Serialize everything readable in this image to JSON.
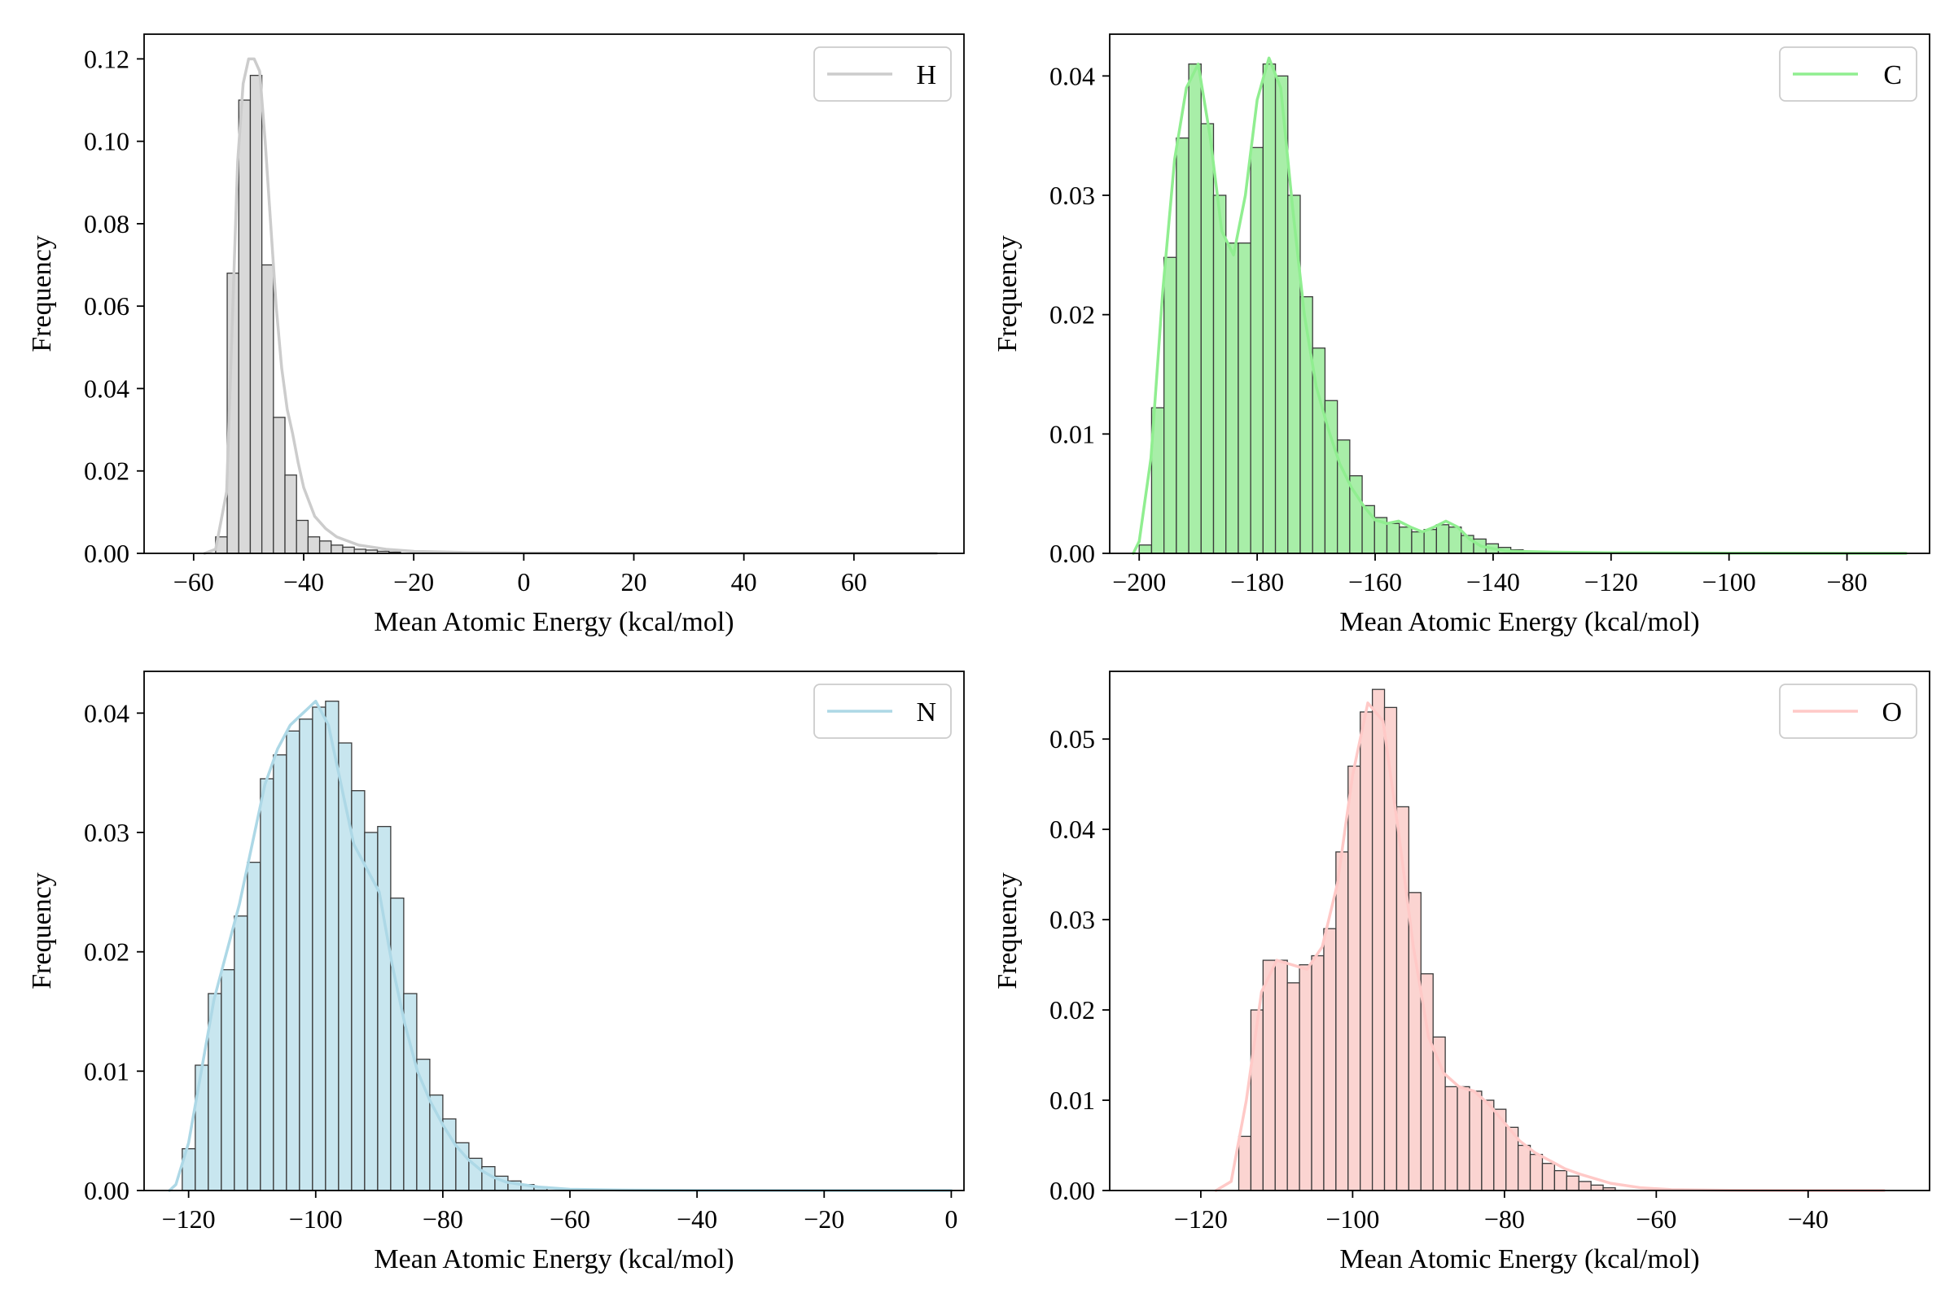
{
  "chart_data": [
    {
      "type": "histogram",
      "legend": {
        "label": "H",
        "position": "top-right"
      },
      "xlabel": "Mean Atomic Energy (kcal/mol)",
      "ylabel": "Frequency",
      "xlim": [
        -69,
        80
      ],
      "ylim": [
        0,
        0.126
      ],
      "xticks": [
        -60,
        -40,
        -20,
        0,
        20,
        40,
        60
      ],
      "yticks": [
        0.0,
        0.02,
        0.04,
        0.06,
        0.08,
        0.1,
        0.12
      ],
      "ytick_decimals": 2,
      "color": "#d9d9d9",
      "line_color": "#cccccc",
      "bin_start": -56,
      "bin_width": 2.1,
      "values": [
        0.004,
        0.068,
        0.11,
        0.116,
        0.07,
        0.033,
        0.019,
        0.008,
        0.004,
        0.003,
        0.002,
        0.0015,
        0.001,
        0.0008,
        0.0005,
        0.0003
      ],
      "kde": {
        "x": [
          -58,
          -56,
          -54,
          -53,
          -52,
          -51,
          -50,
          -49,
          -48,
          -47,
          -46,
          -45,
          -44,
          -43,
          -42,
          -41,
          -40,
          -38,
          -36,
          -34,
          -30,
          -25,
          -20,
          -10,
          0,
          10,
          20,
          30,
          40,
          50,
          60,
          70,
          75
        ],
        "y": [
          0,
          0.001,
          0.015,
          0.055,
          0.095,
          0.114,
          0.12,
          0.12,
          0.117,
          0.1,
          0.08,
          0.06,
          0.045,
          0.035,
          0.029,
          0.022,
          0.016,
          0.009,
          0.006,
          0.004,
          0.002,
          0.001,
          0.0005,
          0.0002,
          0.0001,
          5e-05,
          0,
          0,
          0,
          0,
          0,
          0,
          0
        ]
      }
    },
    {
      "type": "histogram",
      "legend": {
        "label": "C",
        "position": "top-right"
      },
      "xlabel": "Mean Atomic Energy (kcal/mol)",
      "ylabel": "Frequency",
      "xlim": [
        -205,
        -66
      ],
      "ylim": [
        0,
        0.0435
      ],
      "xticks": [
        -200,
        -180,
        -160,
        -140,
        -120,
        -100,
        -80
      ],
      "yticks": [
        0.0,
        0.01,
        0.02,
        0.03,
        0.04
      ],
      "ytick_decimals": 2,
      "color": "#a8eea8",
      "line_color": "#90ee90",
      "bin_start": -200,
      "bin_width": 2.1,
      "values": [
        0.0007,
        0.0122,
        0.0248,
        0.0348,
        0.041,
        0.036,
        0.03,
        0.026,
        0.026,
        0.034,
        0.041,
        0.04,
        0.03,
        0.0215,
        0.0172,
        0.0128,
        0.0095,
        0.0065,
        0.004,
        0.003,
        0.0025,
        0.0022,
        0.0018,
        0.002,
        0.0024,
        0.0022,
        0.0015,
        0.0012,
        0.0008,
        0.0005,
        0.0003
      ],
      "kde": {
        "x": [
          -201,
          -200,
          -198,
          -196,
          -194,
          -192,
          -190,
          -188,
          -186,
          -184,
          -182,
          -180,
          -178,
          -176,
          -174,
          -172,
          -170,
          -168,
          -166,
          -164,
          -162,
          -160,
          -158,
          -156,
          -154,
          -152,
          -150,
          -148,
          -146,
          -144,
          -142,
          -138,
          -130,
          -120,
          -100,
          -80,
          -70
        ],
        "y": [
          0.0,
          0.001,
          0.008,
          0.022,
          0.033,
          0.039,
          0.041,
          0.035,
          0.027,
          0.025,
          0.03,
          0.038,
          0.0415,
          0.039,
          0.029,
          0.02,
          0.014,
          0.0105,
          0.0075,
          0.0055,
          0.004,
          0.0028,
          0.0025,
          0.0027,
          0.0022,
          0.0018,
          0.0022,
          0.0027,
          0.0022,
          0.0012,
          0.0006,
          0.0002,
          0.0001,
          5e-05,
          2e-05,
          0.0,
          0.0
        ]
      }
    },
    {
      "type": "histogram",
      "legend": {
        "label": "N",
        "position": "top-right"
      },
      "xlabel": "Mean Atomic Energy (kcal/mol)",
      "ylabel": "Frequency",
      "xlim": [
        -127,
        2
      ],
      "ylim": [
        0,
        0.0435
      ],
      "xticks": [
        -120,
        -100,
        -80,
        -60,
        -40,
        -20,
        0
      ],
      "yticks": [
        0.0,
        0.01,
        0.02,
        0.03,
        0.04
      ],
      "ytick_decimals": 2,
      "color": "#c8e6ef",
      "line_color": "#add8e6",
      "bin_start": -121,
      "bin_width": 2.05,
      "values": [
        0.0035,
        0.0105,
        0.0165,
        0.0185,
        0.023,
        0.0275,
        0.0345,
        0.0365,
        0.0385,
        0.0395,
        0.0405,
        0.041,
        0.0375,
        0.0335,
        0.03,
        0.0305,
        0.0245,
        0.0165,
        0.011,
        0.008,
        0.006,
        0.004,
        0.0027,
        0.002,
        0.0012,
        0.0008,
        0.0005,
        0.0003
      ],
      "kde": {
        "x": [
          -123,
          -122,
          -120,
          -118,
          -116,
          -114,
          -112,
          -110,
          -108,
          -106,
          -104,
          -102,
          -100,
          -98,
          -96,
          -94,
          -92,
          -90,
          -88,
          -86,
          -84,
          -82,
          -80,
          -78,
          -76,
          -74,
          -72,
          -70,
          -65,
          -60,
          -50,
          -40,
          -20,
          0
        ],
        "y": [
          0.0,
          0.0005,
          0.004,
          0.01,
          0.016,
          0.02,
          0.024,
          0.029,
          0.034,
          0.037,
          0.039,
          0.04,
          0.041,
          0.039,
          0.034,
          0.029,
          0.027,
          0.025,
          0.019,
          0.014,
          0.01,
          0.0075,
          0.0055,
          0.0038,
          0.0026,
          0.0017,
          0.0011,
          0.0007,
          0.0003,
          0.0001,
          3e-05,
          1e-05,
          0.0,
          0.0
        ]
      }
    },
    {
      "type": "histogram",
      "legend": {
        "label": "O",
        "position": "top-right"
      },
      "xlabel": "Mean Atomic Energy (kcal/mol)",
      "ylabel": "Frequency",
      "xlim": [
        -132,
        -24
      ],
      "ylim": [
        0,
        0.0575
      ],
      "xticks": [
        -120,
        -100,
        -80,
        -60,
        -40
      ],
      "yticks": [
        0.0,
        0.01,
        0.02,
        0.03,
        0.04,
        0.05
      ],
      "ytick_decimals": 2,
      "color": "#fbd4d1",
      "line_color": "#ffc9c7",
      "bin_start": -115,
      "bin_width": 1.6,
      "values": [
        0.006,
        0.02,
        0.0255,
        0.0255,
        0.023,
        0.025,
        0.026,
        0.029,
        0.0375,
        0.047,
        0.053,
        0.0555,
        0.0535,
        0.0425,
        0.033,
        0.024,
        0.017,
        0.0115,
        0.0115,
        0.011,
        0.01,
        0.009,
        0.007,
        0.005,
        0.004,
        0.003,
        0.0022,
        0.0016,
        0.001,
        0.0006,
        0.0003
      ],
      "kde": {
        "x": [
          -118,
          -116,
          -114,
          -112,
          -110,
          -108,
          -106,
          -104,
          -102,
          -100,
          -98,
          -96,
          -94,
          -92,
          -90,
          -88,
          -86,
          -84,
          -82,
          -80,
          -78,
          -76,
          -74,
          -72,
          -70,
          -66,
          -62,
          -58,
          -50,
          -40,
          -30
        ],
        "y": [
          0.0,
          0.001,
          0.01,
          0.022,
          0.0255,
          0.025,
          0.0245,
          0.027,
          0.034,
          0.046,
          0.054,
          0.052,
          0.04,
          0.027,
          0.017,
          0.013,
          0.0115,
          0.011,
          0.0095,
          0.0075,
          0.0055,
          0.0042,
          0.0033,
          0.0024,
          0.0018,
          0.0008,
          0.0003,
          0.0001,
          2e-05,
          0.0,
          0.0
        ]
      }
    }
  ]
}
